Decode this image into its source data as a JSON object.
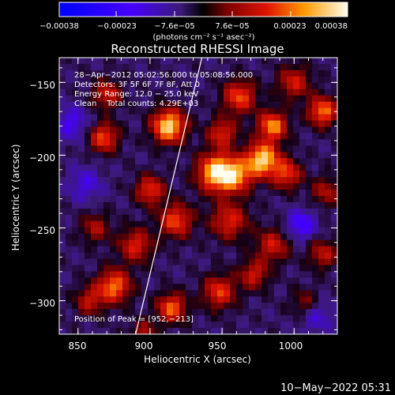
{
  "chart_data": {
    "type": "heatmap",
    "title": "Reconstructed RHESSI Image",
    "xlabel": "Heliocentric X (arcsec)",
    "ylabel": "Heliocentric Y (arcsec)",
    "xlim": [
      837,
      1030
    ],
    "ylim": [
      -323,
      -133
    ],
    "xticks": [
      850,
      900,
      950,
      1000
    ],
    "xtick_labels": [
      "850",
      "900",
      "950",
      "1000"
    ],
    "yticks": [
      -150,
      -200,
      -250,
      -300
    ],
    "ytick_labels": [
      "−150",
      "−200",
      "−250",
      "−300"
    ],
    "colorbar": {
      "range": [
        -0.00038,
        0.00038
      ],
      "ticks": [
        -0.00038,
        -0.00023,
        -7.6e-05,
        7.6e-05,
        0.00023,
        0.00038
      ],
      "tick_labels": [
        "−0.00038",
        "−0.00023",
        "−7.6e−05",
        "7.6e−05",
        "0.00023",
        "0.00038"
      ],
      "unit_label": "(photons cm⁻² s⁻¹ asec⁻²)"
    },
    "annotations": [
      "28−Apr−2012 05:02:56.000 to 05:08:56.000",
      "Detectors: 3F 5F 6F 7F 8F, Att 0",
      "Energy Range: 12.0 − 25.0 keV",
      "Clean    Total counts: 4.29E+03"
    ],
    "peak_label": "Position of Peak = [952,−213]",
    "peak": [
      952,
      -213
    ],
    "limb_line": [
      [
        890,
        -323
      ],
      [
        936,
        -133
      ]
    ],
    "blobs": [
      {
        "x": 913,
        "y": -180,
        "amp": 1.0,
        "s": 8
      },
      {
        "x": 946,
        "y": -212,
        "amp": 1.0,
        "s": 9
      },
      {
        "x": 960,
        "y": -214,
        "amp": 0.7,
        "s": 8
      },
      {
        "x": 978,
        "y": -203,
        "amp": 1.0,
        "s": 8
      },
      {
        "x": 995,
        "y": -213,
        "amp": 0.6,
        "s": 7
      },
      {
        "x": 985,
        "y": -180,
        "amp": 0.8,
        "s": 7
      },
      {
        "x": 1020,
        "y": -170,
        "amp": 0.75,
        "s": 7
      },
      {
        "x": 1000,
        "y": -150,
        "amp": 0.5,
        "s": 8
      },
      {
        "x": 962,
        "y": -160,
        "amp": 0.65,
        "s": 8
      },
      {
        "x": 950,
        "y": -185,
        "amp": 0.55,
        "s": 7
      },
      {
        "x": 955,
        "y": -245,
        "amp": 0.55,
        "s": 9
      },
      {
        "x": 985,
        "y": -262,
        "amp": 0.5,
        "s": 8
      },
      {
        "x": 1020,
        "y": -268,
        "amp": 0.45,
        "s": 7
      },
      {
        "x": 1022,
        "y": -225,
        "amp": 0.4,
        "s": 7
      },
      {
        "x": 918,
        "y": -245,
        "amp": 0.65,
        "s": 8
      },
      {
        "x": 900,
        "y": -224,
        "amp": 0.6,
        "s": 7
      },
      {
        "x": 890,
        "y": -262,
        "amp": 0.55,
        "s": 8
      },
      {
        "x": 862,
        "y": -250,
        "amp": 0.4,
        "s": 7
      },
      {
        "x": 868,
        "y": -188,
        "amp": 0.65,
        "s": 7
      },
      {
        "x": 870,
        "y": -158,
        "amp": 0.5,
        "s": 7
      },
      {
        "x": 875,
        "y": -290,
        "amp": 0.75,
        "s": 8
      },
      {
        "x": 858,
        "y": -300,
        "amp": 0.45,
        "s": 7
      },
      {
        "x": 915,
        "y": -305,
        "amp": 0.7,
        "s": 7
      },
      {
        "x": 948,
        "y": -294,
        "amp": 0.6,
        "s": 8
      },
      {
        "x": 972,
        "y": -282,
        "amp": 0.5,
        "s": 7
      },
      {
        "x": 1008,
        "y": -302,
        "amp": 0.35,
        "s": 7
      },
      {
        "x": 895,
        "y": -322,
        "amp": 0.4,
        "s": 6
      },
      {
        "x": 845,
        "y": -178,
        "amp": -0.35,
        "s": 8
      },
      {
        "x": 1005,
        "y": -248,
        "amp": -0.45,
        "s": 7
      },
      {
        "x": 1015,
        "y": -310,
        "amp": -0.3,
        "s": 8
      },
      {
        "x": 855,
        "y": -220,
        "amp": -0.3,
        "s": 8
      }
    ]
  },
  "timestamp": "10−May−2022 05:31"
}
